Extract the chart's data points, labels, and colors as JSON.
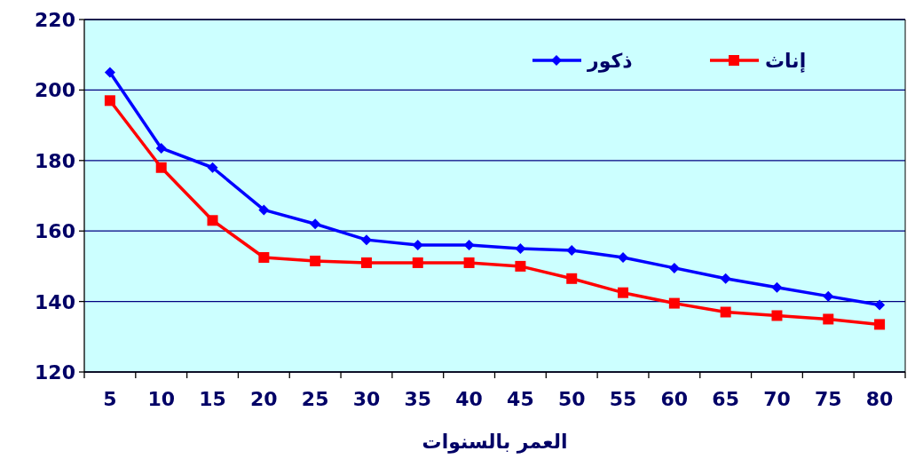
{
  "chart_data": {
    "type": "line",
    "xlabel": "العمر بالسنوات",
    "categories": [
      "5",
      "10",
      "15",
      "20",
      "25",
      "30",
      "35",
      "40",
      "45",
      "50",
      "55",
      "60",
      "65",
      "70",
      "75",
      "80"
    ],
    "ylim": [
      120,
      220
    ],
    "yticks": [
      120,
      140,
      160,
      180,
      200,
      220
    ],
    "grid": "y",
    "legend": "top right",
    "series": [
      {
        "name": "ذكور",
        "color": "#0000ff",
        "marker": "diamond",
        "values": [
          205,
          183.5,
          178,
          166,
          162,
          157.5,
          156,
          156,
          155,
          154.5,
          152.5,
          149.5,
          146.5,
          144,
          141.5,
          139
        ]
      },
      {
        "name": "إناث",
        "color": "#ff0000",
        "marker": "square",
        "values": [
          197,
          178,
          163,
          152.5,
          151.5,
          151,
          151,
          151,
          150,
          146.5,
          142.5,
          139.5,
          137,
          136,
          135,
          133.5
        ]
      }
    ]
  }
}
